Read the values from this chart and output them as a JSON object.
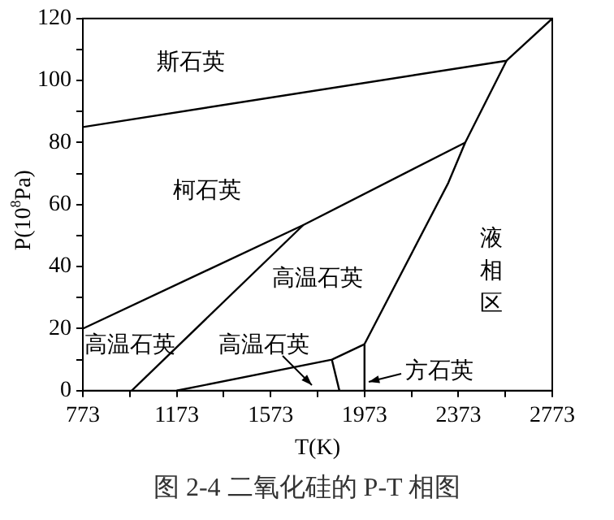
{
  "chart_data": {
    "type": "line",
    "xlabel": "T(K)",
    "ylabel": "P(10$^{8}$Pa)",
    "xlim": [
      773,
      2773
    ],
    "ylim": [
      0,
      120
    ],
    "xticks": [
      773,
      {
        "value": 973,
        "label": null
      },
      1173,
      {
        "value": 1373,
        "label": null
      },
      1573,
      {
        "value": 1773,
        "label": null
      },
      1973,
      {
        "value": 2173,
        "label": null
      },
      2373,
      {
        "value": 2573,
        "label": null
      },
      2773
    ],
    "yticks": [
      0,
      {
        "value": 10,
        "label": null
      },
      20,
      {
        "value": 30,
        "label": null
      },
      40,
      {
        "value": 50,
        "label": null
      },
      60,
      {
        "value": 70,
        "label": null
      },
      80,
      {
        "value": 90,
        "label": null
      },
      100,
      {
        "value": 110,
        "label": null
      },
      120
    ],
    "grid": false,
    "legend": false,
    "marker": "none",
    "line_style": "solid",
    "series": [
      {
        "color": "#000000",
        "x": [
          773,
          2578,
          2773
        ],
        "values": [
          85,
          106.4,
          120
        ]
      },
      {
        "color": "#000000",
        "x": [
          2578,
          2402,
          2330,
          1973
        ],
        "values": [
          106.4,
          80,
          67,
          15
        ]
      },
      {
        "color": "#000000",
        "x": [
          773,
          1712,
          2402
        ],
        "values": [
          20,
          53.4,
          80
        ]
      },
      {
        "color": "#000000",
        "x": [
          981,
          1712
        ],
        "values": [
          0,
          53.4
        ]
      },
      {
        "color": "#000000",
        "x": [
          1173,
          1834,
          1973
        ],
        "values": [
          0,
          10,
          15
        ]
      },
      {
        "color": "#000000",
        "x": [
          1834,
          1866
        ],
        "values": [
          10,
          0
        ]
      },
      {
        "color": "#000000",
        "x": [
          1973,
          1973
        ],
        "values": [
          0,
          15
        ]
      }
    ],
    "annotations": [
      "斯石英",
      "柯石英",
      "高温石英",
      "液相区",
      "高温石英",
      "高温石英",
      "方石英",
      "图 2-4  二氧化硅的 P-T 相图"
    ]
  }
}
